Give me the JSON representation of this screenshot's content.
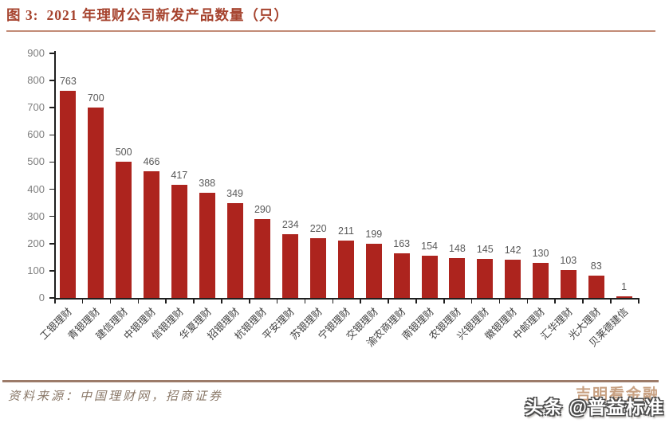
{
  "header": {
    "figure_label": "图 3:",
    "title": "2021 年理财公司新发产品数量（只）"
  },
  "chart_data": {
    "type": "bar",
    "title": "2021 年理财公司新发产品数量（只）",
    "categories": [
      "工银理财",
      "青银理财",
      "建信理财",
      "中银理财",
      "信银理财",
      "华夏理财",
      "招银理财",
      "杭银理财",
      "平安理财",
      "苏银理财",
      "宁银理财",
      "交银理财",
      "渝农商理财",
      "南银理财",
      "农银理财",
      "兴银理财",
      "徽银理财",
      "中邮理财",
      "汇华理财",
      "光大理财",
      "贝莱德建信"
    ],
    "values": [
      763,
      700,
      500,
      466,
      417,
      388,
      349,
      290,
      234,
      220,
      211,
      199,
      163,
      154,
      148,
      145,
      142,
      130,
      103,
      83,
      1
    ],
    "xlabel": "",
    "ylabel": "",
    "ylim": [
      0,
      900
    ],
    "ytick_step": 100,
    "grid": false,
    "legend": "none",
    "value_labels_shown": true,
    "bar_color": "#AD241E"
  },
  "footer": {
    "source": "资料来源：中国理财网，招商证券"
  },
  "watermark": {
    "back_text": "吉明看金融",
    "front_text": "头条 @普益标准"
  },
  "colors": {
    "accent_red": "#AD241E",
    "title_text": "#A6432E",
    "title_rule": "#C28B76",
    "footer_rule": "#9C7B69",
    "source_text": "#8A7868",
    "watermark_tan": "#C8A182",
    "axis_line": "#1F1F1F",
    "y_tick_label": "#7F7F7F",
    "value_label": "#595959",
    "category_label": "#3F3F3F"
  }
}
